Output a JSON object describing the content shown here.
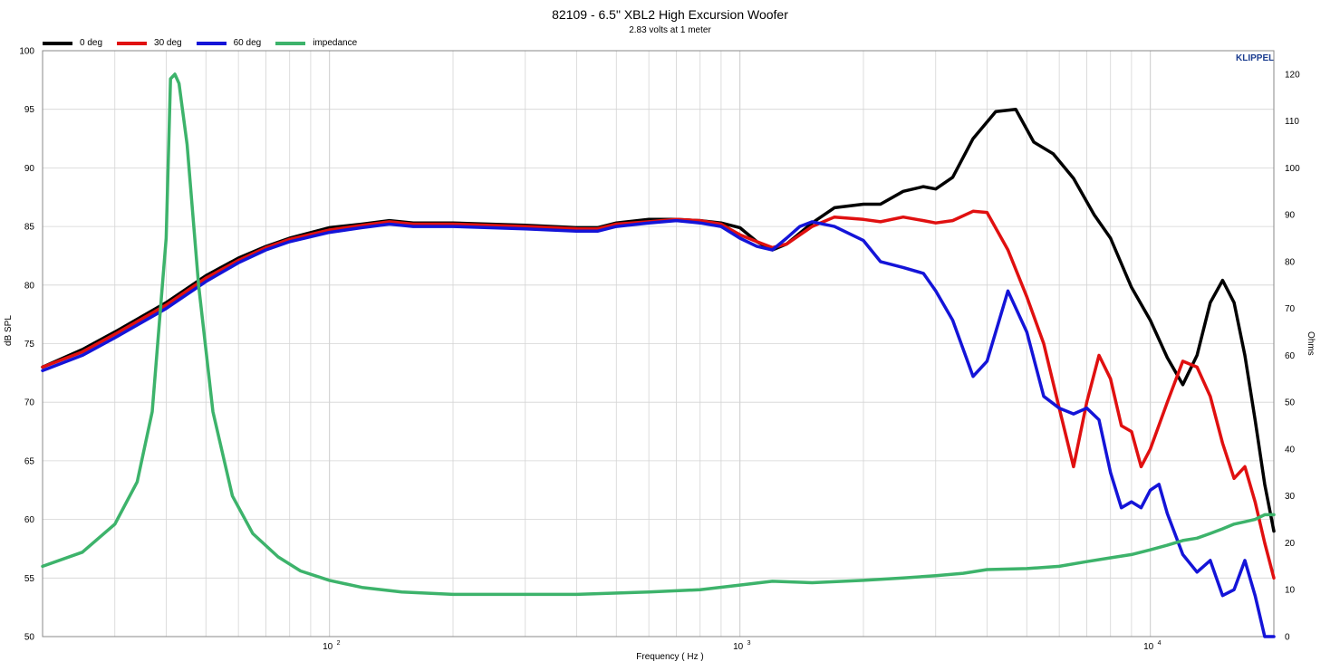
{
  "chart_data": {
    "type": "line",
    "title": "82109 - 6.5\" XBL2 High Excursion Woofer",
    "subtitle": "2.83 volts at 1 meter",
    "brand": "KLIPPEL",
    "xlabel": "Frequency ( Hz )",
    "ylabel_left": "dB SPL",
    "ylabel_right": "Ohms",
    "x_scale": "log",
    "xlim": [
      20,
      20000
    ],
    "ylim_left": [
      50,
      100
    ],
    "ylim_right": [
      0,
      125
    ],
    "y_ticks_left": [
      50,
      55,
      60,
      65,
      70,
      75,
      80,
      85,
      90,
      95,
      100
    ],
    "y_ticks_right": [
      0,
      10,
      20,
      30,
      40,
      50,
      60,
      70,
      80,
      90,
      100,
      110,
      120
    ],
    "x_ticks": [
      {
        "value": 100,
        "label": "10",
        "exp": "2"
      },
      {
        "value": 1000,
        "label": "10",
        "exp": "3"
      },
      {
        "value": 10000,
        "label": "10",
        "exp": "4"
      }
    ],
    "grid": true,
    "legend_position": "top-left",
    "series": [
      {
        "name": "0 deg",
        "color": "#000000",
        "axis": "left",
        "x": [
          20,
          25,
          30,
          40,
          50,
          60,
          70,
          80,
          100,
          120,
          140,
          160,
          200,
          300,
          400,
          450,
          500,
          600,
          700,
          800,
          900,
          1000,
          1100,
          1200,
          1300,
          1500,
          1700,
          2000,
          2200,
          2500,
          2800,
          3000,
          3300,
          3700,
          4200,
          4700,
          5200,
          5800,
          6500,
          7300,
          8000,
          9000,
          10000,
          11000,
          12000,
          13000,
          14000,
          15000,
          16000,
          17000,
          18000,
          19000,
          20000
        ],
        "y": [
          73.0,
          74.5,
          76.0,
          78.5,
          80.8,
          82.3,
          83.3,
          84.0,
          84.9,
          85.2,
          85.5,
          85.3,
          85.3,
          85.1,
          84.9,
          84.9,
          85.3,
          85.6,
          85.6,
          85.5,
          85.3,
          84.9,
          83.7,
          83.0,
          83.5,
          85.3,
          86.6,
          86.9,
          86.9,
          88.0,
          88.4,
          88.2,
          89.2,
          92.5,
          94.8,
          95.0,
          92.2,
          91.2,
          89.1,
          86.0,
          84.0,
          79.8,
          77.0,
          73.8,
          71.5,
          74.0,
          78.5,
          80.4,
          78.5,
          74.0,
          68.5,
          63.0,
          59.0
        ]
      },
      {
        "name": "30 deg",
        "color": "#e01010",
        "axis": "left",
        "x": [
          20,
          25,
          30,
          40,
          50,
          60,
          70,
          80,
          100,
          120,
          140,
          160,
          200,
          300,
          400,
          450,
          500,
          600,
          700,
          800,
          900,
          1000,
          1100,
          1200,
          1300,
          1500,
          1700,
          2000,
          2200,
          2500,
          2800,
          3000,
          3300,
          3700,
          4000,
          4500,
          5000,
          5500,
          6000,
          6500,
          7000,
          7500,
          8000,
          8500,
          9000,
          9500,
          10000,
          11000,
          12000,
          13000,
          14000,
          15000,
          16000,
          17000,
          18000,
          19000,
          20000
        ],
        "y": [
          73.0,
          74.3,
          75.8,
          78.3,
          80.6,
          82.1,
          83.2,
          83.9,
          84.7,
          85.1,
          85.4,
          85.2,
          85.2,
          85.0,
          84.8,
          84.8,
          85.2,
          85.4,
          85.6,
          85.5,
          85.2,
          84.3,
          83.7,
          83.2,
          83.5,
          85.0,
          85.8,
          85.6,
          85.4,
          85.8,
          85.5,
          85.3,
          85.5,
          86.3,
          86.2,
          83.0,
          79.0,
          75.0,
          69.5,
          64.5,
          70.0,
          74.0,
          72.0,
          68.0,
          67.5,
          64.5,
          66.0,
          70.0,
          73.5,
          73.0,
          70.5,
          66.5,
          63.5,
          64.5,
          61.5,
          58.0,
          55.0
        ]
      },
      {
        "name": "60 deg",
        "color": "#1414d8",
        "axis": "left",
        "x": [
          20,
          25,
          30,
          40,
          50,
          60,
          70,
          80,
          100,
          120,
          140,
          160,
          200,
          300,
          400,
          450,
          500,
          600,
          700,
          800,
          900,
          1000,
          1100,
          1200,
          1300,
          1400,
          1500,
          1700,
          2000,
          2200,
          2500,
          2800,
          3000,
          3300,
          3700,
          4000,
          4500,
          5000,
          5500,
          6000,
          6500,
          7000,
          7500,
          8000,
          8500,
          9000,
          9500,
          10000,
          10500,
          11000,
          12000,
          13000,
          14000,
          15000,
          16000,
          17000,
          18000,
          19000,
          20000
        ],
        "y": [
          72.7,
          74.0,
          75.5,
          78.0,
          80.3,
          81.9,
          83.0,
          83.7,
          84.5,
          84.9,
          85.2,
          85.0,
          85.0,
          84.8,
          84.6,
          84.6,
          85.0,
          85.3,
          85.5,
          85.3,
          85.0,
          84.0,
          83.3,
          83.0,
          84.0,
          85.0,
          85.4,
          85.0,
          83.8,
          82.0,
          81.5,
          81.0,
          79.5,
          77.0,
          72.2,
          73.5,
          79.5,
          76.0,
          70.5,
          69.5,
          69.0,
          69.5,
          68.5,
          64.0,
          61.0,
          61.5,
          61.0,
          62.5,
          63.0,
          60.5,
          57.0,
          55.5,
          56.5,
          53.5,
          54.0,
          56.5,
          53.5,
          50.0,
          50.0
        ]
      },
      {
        "name": "impedance",
        "color": "#3db36b",
        "axis": "right",
        "x": [
          20,
          25,
          30,
          34,
          37,
          40,
          41,
          42,
          43,
          45,
          48,
          52,
          58,
          65,
          75,
          85,
          100,
          120,
          150,
          200,
          300,
          400,
          600,
          800,
          1000,
          1200,
          1500,
          2000,
          2500,
          3000,
          3500,
          4000,
          5000,
          6000,
          7000,
          8000,
          9000,
          10000,
          11000,
          12000,
          13000,
          14000,
          15000,
          16000,
          17000,
          18000,
          19000,
          20000
        ],
        "y": [
          15,
          18,
          24,
          33,
          48,
          85,
          119,
          120,
          118,
          105,
          75,
          48,
          30,
          22,
          17,
          14,
          12,
          10.5,
          9.5,
          9,
          9,
          9,
          9.5,
          10,
          11,
          11.8,
          11.5,
          12,
          12.5,
          13,
          13.5,
          14.3,
          14.5,
          15,
          16,
          16.8,
          17.5,
          18.5,
          19.5,
          20.5,
          21,
          22,
          23,
          24,
          24.5,
          25,
          26,
          26
        ]
      }
    ]
  },
  "colors": {
    "grid": "#d4d4d4",
    "axis": "#888888",
    "background": "#ffffff"
  }
}
